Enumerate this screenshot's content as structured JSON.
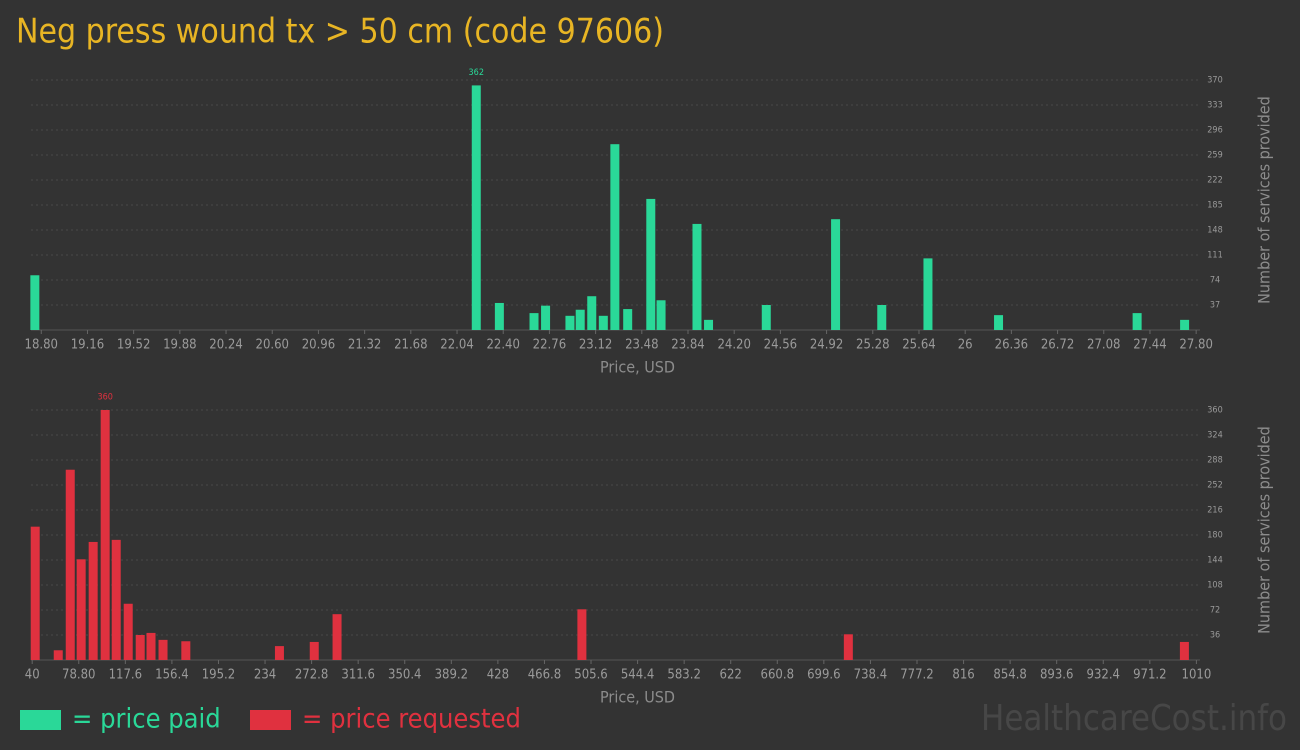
{
  "title": "Neg press wound tx > 50 cm (code 97606)",
  "legend": [
    {
      "label": "= price paid",
      "color": "#2ad898"
    },
    {
      "label": "= price requested",
      "color": "#e0313f"
    }
  ],
  "watermark": "HealthcareCost.info",
  "chart_data": [
    {
      "type": "bar",
      "color": "#2ad898",
      "grid": true,
      "xlabel": "Price, USD",
      "ylabel": "Number of services provided",
      "x": [
        18.75,
        22.19,
        22.37,
        22.64,
        22.73,
        22.92,
        23.0,
        23.09,
        23.18,
        23.27,
        23.37,
        23.55,
        23.63,
        23.91,
        24.0,
        24.45,
        24.99,
        25.35,
        25.71,
        26.26,
        27.34,
        27.71
      ],
      "values": [
        81,
        362,
        40,
        25,
        36,
        21,
        30,
        50,
        21,
        275,
        31,
        194,
        44,
        157,
        15,
        37,
        164,
        37,
        106,
        22,
        25,
        15
      ],
      "xlim": [
        18.72,
        27.83
      ],
      "xticks": [
        {
          "value": 18.8,
          "label": "18.80"
        },
        19.16,
        19.52,
        19.88,
        20.24,
        {
          "value": 20.6,
          "label": "20.60"
        },
        20.96,
        21.32,
        21.68,
        22.04,
        {
          "value": 22.4,
          "label": "22.40"
        },
        22.76,
        23.12,
        23.48,
        23.84,
        {
          "value": 24.2,
          "label": "24.20"
        },
        24.56,
        24.92,
        25.28,
        25.64,
        26,
        26.36,
        26.72,
        27.08,
        27.44,
        {
          "value": 27.8,
          "label": "27.80"
        }
      ],
      "ylim": [
        0,
        370
      ],
      "yticks": [
        37,
        74,
        111,
        148,
        185,
        222,
        259,
        296,
        333,
        370
      ]
    },
    {
      "type": "bar",
      "color": "#e0313f",
      "grid": true,
      "xlabel": "Price, USD",
      "ylabel": "Number of services provided",
      "x": [
        42.5,
        61.7,
        71.7,
        80.8,
        90.8,
        100.8,
        110,
        120,
        130,
        139,
        149,
        168,
        246,
        275,
        294,
        498,
        720,
        1000
      ],
      "values": [
        192,
        14,
        274,
        145,
        170,
        360,
        173,
        81,
        36,
        39,
        29,
        27,
        20,
        26,
        66,
        73,
        37,
        26
      ],
      "xlim": [
        39,
        1013
      ],
      "xticks": [
        40,
        {
          "value": 78.8,
          "label": "78.80"
        },
        117.6,
        156.4,
        195.2,
        234,
        272.8,
        311.6,
        350.4,
        389.2,
        428,
        466.8,
        505.6,
        544.4,
        583.2,
        622,
        660.8,
        699.6,
        738.4,
        777.2,
        816,
        854.8,
        893.6,
        932.4,
        971.2,
        1010
      ],
      "ylim": [
        0,
        360
      ],
      "yticks": [
        36,
        72,
        108,
        144,
        180,
        216,
        252,
        288,
        324,
        360
      ]
    }
  ]
}
